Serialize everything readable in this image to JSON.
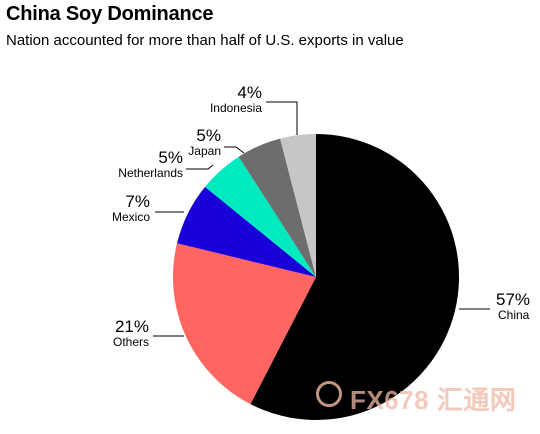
{
  "header": {
    "title": "China Soy Dominance",
    "subtitle": "Nation accounted for more than half of U.S. exports in value"
  },
  "watermark": {
    "text": "FX678 汇通网"
  },
  "chart_data": {
    "type": "pie",
    "title": "China Soy Dominance",
    "subtitle": "Nation accounted for more than half of U.S. exports in value",
    "direction": "clockwise from top",
    "slices": [
      {
        "name": "China",
        "value": 57,
        "label": "57%",
        "color": "#000000"
      },
      {
        "name": "Others",
        "value": 21,
        "label": "21%",
        "color": "#ff6661"
      },
      {
        "name": "Mexico",
        "value": 7,
        "label": "7%",
        "color": "#1a00d9"
      },
      {
        "name": "Netherlands",
        "value": 5,
        "label": "5%",
        "color": "#00eabf"
      },
      {
        "name": "Japan",
        "value": 5,
        "label": "5%",
        "color": "#6d6d6d"
      },
      {
        "name": "Indonesia",
        "value": 4,
        "label": "4%",
        "color": "#c6c6c6"
      }
    ]
  }
}
